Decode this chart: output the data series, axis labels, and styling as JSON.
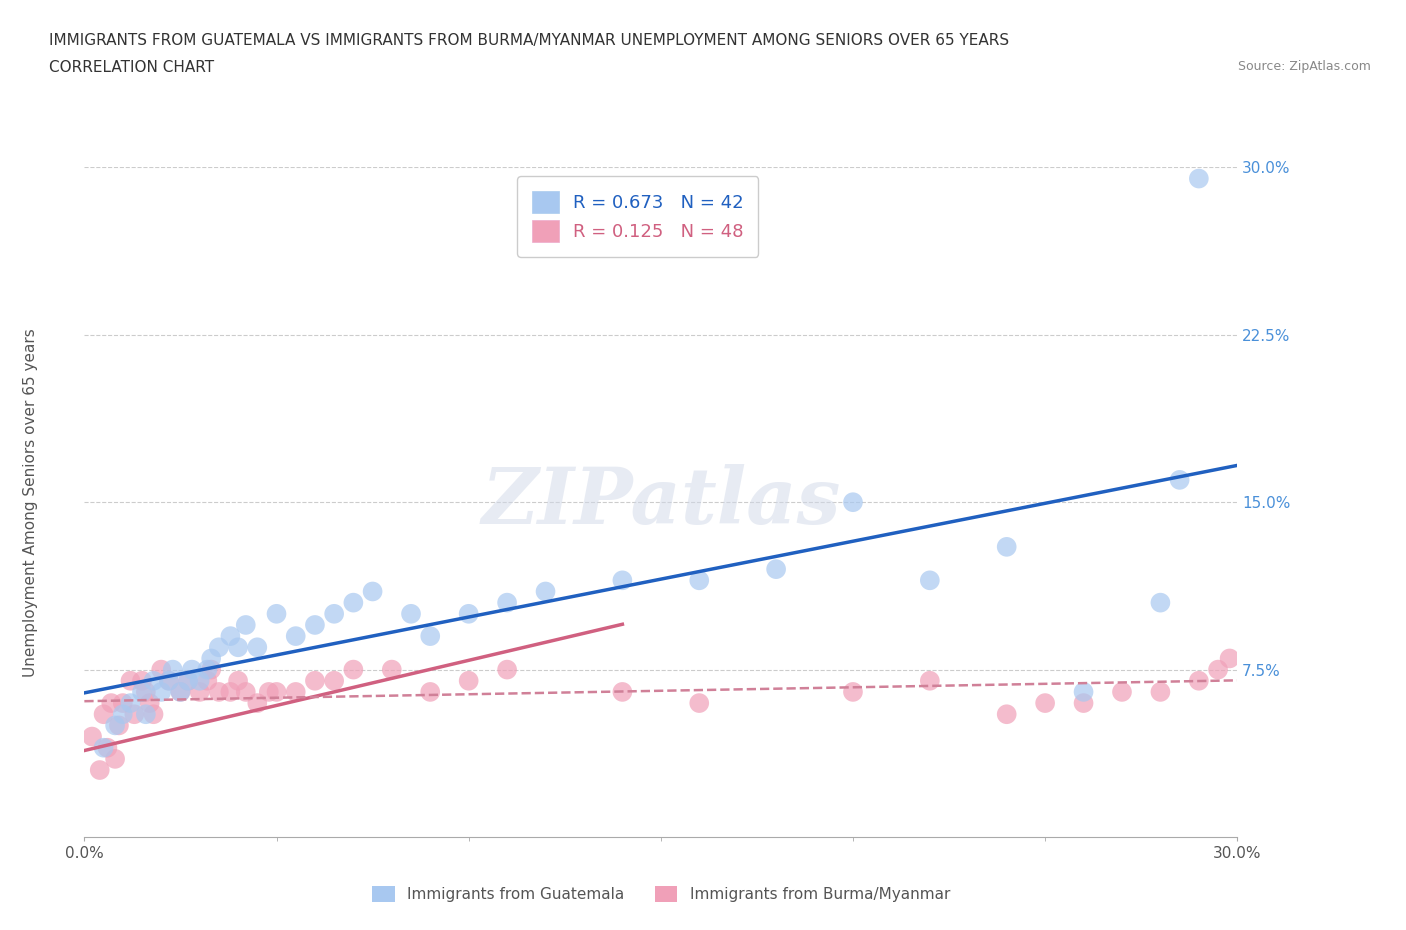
{
  "title_line1": "IMMIGRANTS FROM GUATEMALA VS IMMIGRANTS FROM BURMA/MYANMAR UNEMPLOYMENT AMONG SENIORS OVER 65 YEARS",
  "title_line2": "CORRELATION CHART",
  "source": "Source: ZipAtlas.com",
  "ylabel": "Unemployment Among Seniors over 65 years",
  "xlim": [
    0,
    0.3
  ],
  "ylim": [
    0,
    0.3
  ],
  "grid_yticks": [
    0.075,
    0.15,
    0.225,
    0.3
  ],
  "watermark": "ZIPatlas",
  "R_guatemala": 0.673,
  "N_guatemala": 42,
  "R_burma": 0.125,
  "N_burma": 48,
  "color_guatemala": "#a8c8f0",
  "color_burma": "#f0a0b8",
  "line_color_guatemala": "#2060c0",
  "line_color_burma": "#d06080",
  "line_color_burma_dashed": "#d08098",
  "legend_label_guatemala": "Immigrants from Guatemala",
  "legend_label_burma": "Immigrants from Burma/Myanmar",
  "guatemala_x": [
    0.005,
    0.008,
    0.01,
    0.012,
    0.015,
    0.016,
    0.018,
    0.02,
    0.022,
    0.023,
    0.025,
    0.027,
    0.028,
    0.03,
    0.032,
    0.033,
    0.035,
    0.038,
    0.04,
    0.042,
    0.045,
    0.05,
    0.055,
    0.06,
    0.065,
    0.07,
    0.075,
    0.085,
    0.09,
    0.1,
    0.11,
    0.12,
    0.14,
    0.16,
    0.18,
    0.2,
    0.22,
    0.24,
    0.26,
    0.28,
    0.285,
    0.29
  ],
  "guatemala_y": [
    0.04,
    0.05,
    0.055,
    0.06,
    0.065,
    0.055,
    0.07,
    0.065,
    0.07,
    0.075,
    0.065,
    0.07,
    0.075,
    0.07,
    0.075,
    0.08,
    0.085,
    0.09,
    0.085,
    0.095,
    0.085,
    0.1,
    0.09,
    0.095,
    0.1,
    0.105,
    0.11,
    0.1,
    0.09,
    0.1,
    0.105,
    0.11,
    0.115,
    0.115,
    0.12,
    0.15,
    0.115,
    0.13,
    0.065,
    0.105,
    0.16,
    0.295
  ],
  "burma_x": [
    0.002,
    0.004,
    0.005,
    0.006,
    0.007,
    0.008,
    0.009,
    0.01,
    0.012,
    0.013,
    0.015,
    0.016,
    0.017,
    0.018,
    0.02,
    0.022,
    0.025,
    0.027,
    0.03,
    0.032,
    0.033,
    0.035,
    0.038,
    0.04,
    0.042,
    0.045,
    0.048,
    0.05,
    0.055,
    0.06,
    0.065,
    0.07,
    0.08,
    0.09,
    0.1,
    0.11,
    0.14,
    0.16,
    0.2,
    0.22,
    0.24,
    0.25,
    0.26,
    0.27,
    0.28,
    0.29,
    0.295,
    0.298
  ],
  "burma_y": [
    0.045,
    0.03,
    0.055,
    0.04,
    0.06,
    0.035,
    0.05,
    0.06,
    0.07,
    0.055,
    0.07,
    0.065,
    0.06,
    0.055,
    0.075,
    0.07,
    0.065,
    0.07,
    0.065,
    0.07,
    0.075,
    0.065,
    0.065,
    0.07,
    0.065,
    0.06,
    0.065,
    0.065,
    0.065,
    0.07,
    0.07,
    0.075,
    0.075,
    0.065,
    0.07,
    0.075,
    0.065,
    0.06,
    0.065,
    0.07,
    0.055,
    0.06,
    0.06,
    0.065,
    0.065,
    0.07,
    0.075,
    0.08
  ]
}
